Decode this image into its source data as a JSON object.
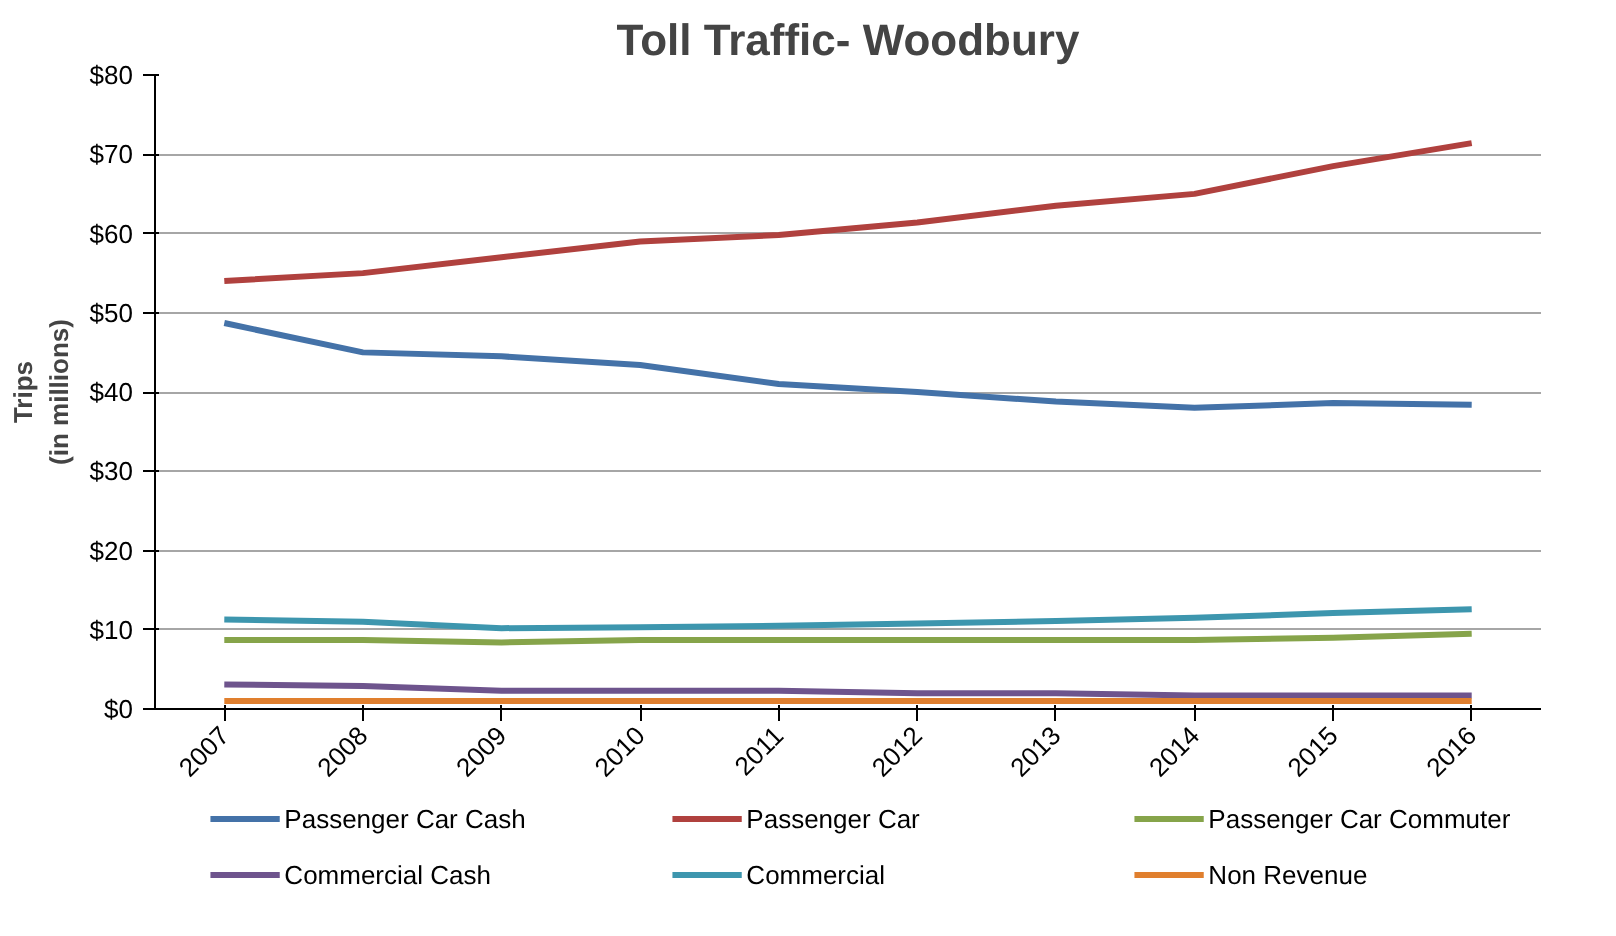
{
  "chart_data": {
    "type": "line",
    "title": "Toll Traffic- Woodbury",
    "ylabel": "Trips\n(in millions)",
    "categories": [
      "2007",
      "2008",
      "2009",
      "2010",
      "2011",
      "2012",
      "2013",
      "2014",
      "2015",
      "2016"
    ],
    "series": [
      {
        "name": "Passenger Car Cash",
        "color": "#4472a8",
        "values": [
          48.7,
          45,
          44.5,
          43.4,
          41,
          40,
          38.8,
          38,
          38.6,
          38.4
        ]
      },
      {
        "name": "Passenger Car",
        "color": "#b0413e",
        "values": [
          54,
          55,
          57,
          59,
          59.8,
          61.4,
          63.5,
          65,
          68.5,
          71.4
        ]
      },
      {
        "name": "Passenger Car Commuter",
        "color": "#86a44a",
        "values": [
          8.7,
          8.7,
          8.4,
          8.7,
          8.7,
          8.7,
          8.7,
          8.7,
          9,
          9.5
        ]
      },
      {
        "name": "Commercial Cash",
        "color": "#6e548d",
        "values": [
          3.1,
          2.9,
          2.3,
          2.3,
          2.3,
          2,
          2,
          1.7,
          1.7,
          1.7
        ]
      },
      {
        "name": "Commercial",
        "color": "#3d96ae",
        "values": [
          11.3,
          11,
          10.2,
          10.3,
          10.5,
          10.8,
          11.1,
          11.5,
          12.1,
          12.6
        ]
      },
      {
        "name": "Non Revenue",
        "color": "#e07f2e",
        "values": [
          1,
          1,
          1,
          1,
          1,
          1,
          1,
          1,
          1,
          1
        ]
      }
    ],
    "ylim": [
      0,
      80
    ],
    "yticks": [
      {
        "value": 0,
        "label": "$0"
      },
      {
        "value": 10,
        "label": "$10"
      },
      {
        "value": 20,
        "label": "$20"
      },
      {
        "value": 30,
        "label": "$30"
      },
      {
        "value": 40,
        "label": "$40"
      },
      {
        "value": 50,
        "label": "$50"
      },
      {
        "value": 60,
        "label": "$60"
      },
      {
        "value": 70,
        "label": "$70"
      },
      {
        "value": 80,
        "label": "$80"
      }
    ],
    "grid": "y",
    "legend": "bottom",
    "marker": "none",
    "line_style": "solid"
  }
}
